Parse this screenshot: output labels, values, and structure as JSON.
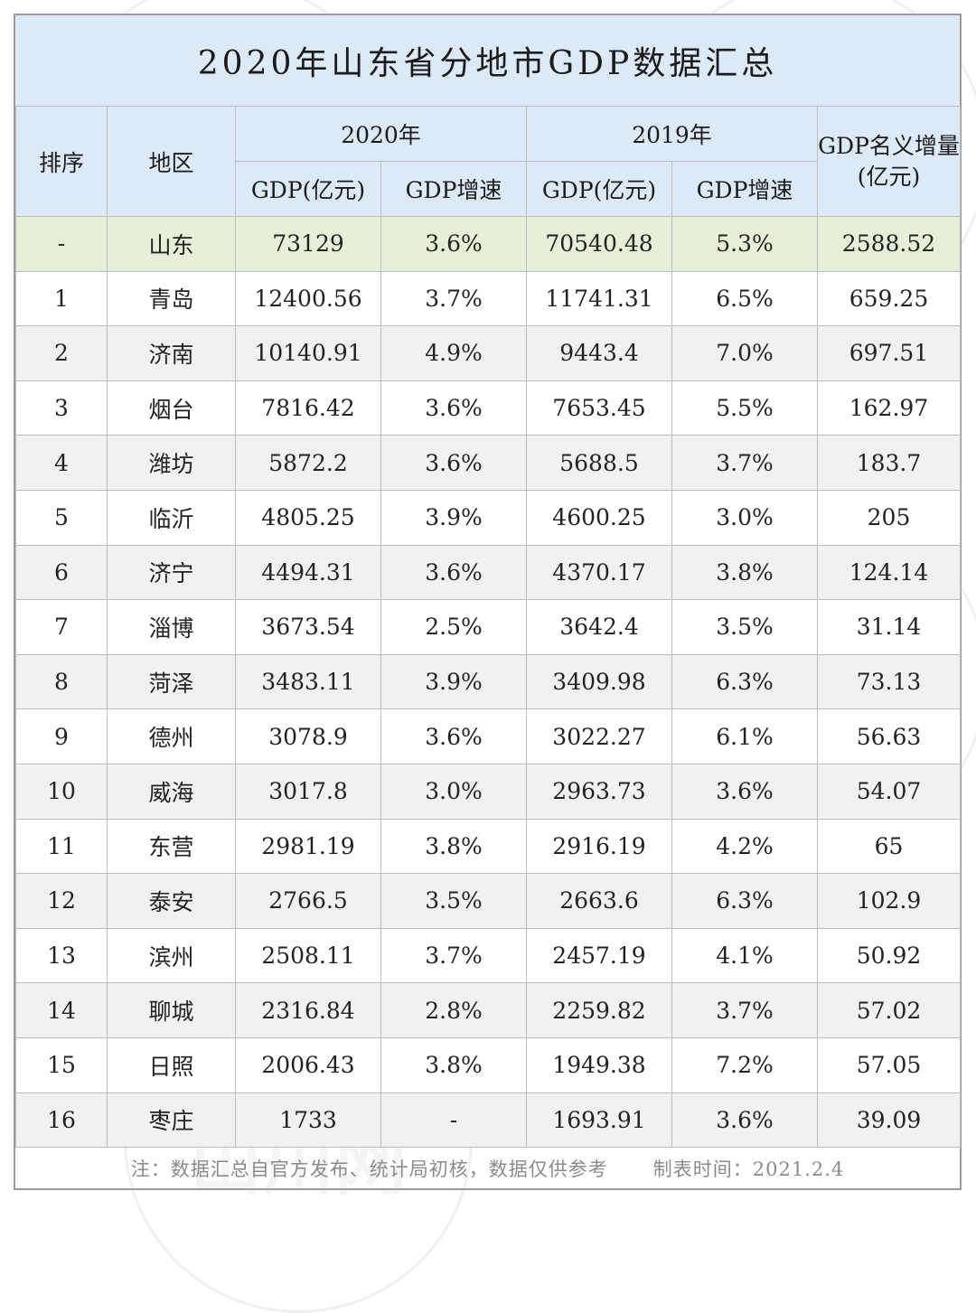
{
  "title": "2020年山东省分地市GDP数据汇总",
  "chart_data": {
    "type": "table",
    "title": "2020年山东省分地市GDP数据汇总",
    "header": {
      "rank": "排序",
      "region": "地区",
      "year2020": "2020年",
      "year2019": "2019年",
      "gdp": "GDP(亿元)",
      "rate": "GDP增速",
      "increase": "GDP名义增量(亿元)"
    },
    "rows": [
      {
        "rank": "-",
        "region": "山东",
        "gdp2020": "73129",
        "rate2020": "3.6%",
        "gdp2019": "70540.48",
        "rate2019": "5.3%",
        "increase": "2588.52"
      },
      {
        "rank": "1",
        "region": "青岛",
        "gdp2020": "12400.56",
        "rate2020": "3.7%",
        "gdp2019": "11741.31",
        "rate2019": "6.5%",
        "increase": "659.25"
      },
      {
        "rank": "2",
        "region": "济南",
        "gdp2020": "10140.91",
        "rate2020": "4.9%",
        "gdp2019": "9443.4",
        "rate2019": "7.0%",
        "increase": "697.51"
      },
      {
        "rank": "3",
        "region": "烟台",
        "gdp2020": "7816.42",
        "rate2020": "3.6%",
        "gdp2019": "7653.45",
        "rate2019": "5.5%",
        "increase": "162.97"
      },
      {
        "rank": "4",
        "region": "潍坊",
        "gdp2020": "5872.2",
        "rate2020": "3.6%",
        "gdp2019": "5688.5",
        "rate2019": "3.7%",
        "increase": "183.7"
      },
      {
        "rank": "5",
        "region": "临沂",
        "gdp2020": "4805.25",
        "rate2020": "3.9%",
        "gdp2019": "4600.25",
        "rate2019": "3.0%",
        "increase": "205"
      },
      {
        "rank": "6",
        "region": "济宁",
        "gdp2020": "4494.31",
        "rate2020": "3.6%",
        "gdp2019": "4370.17",
        "rate2019": "3.8%",
        "increase": "124.14"
      },
      {
        "rank": "7",
        "region": "淄博",
        "gdp2020": "3673.54",
        "rate2020": "2.5%",
        "gdp2019": "3642.4",
        "rate2019": "3.5%",
        "increase": "31.14"
      },
      {
        "rank": "8",
        "region": "菏泽",
        "gdp2020": "3483.11",
        "rate2020": "3.9%",
        "gdp2019": "3409.98",
        "rate2019": "6.3%",
        "increase": "73.13"
      },
      {
        "rank": "9",
        "region": "德州",
        "gdp2020": "3078.9",
        "rate2020": "3.6%",
        "gdp2019": "3022.27",
        "rate2019": "6.1%",
        "increase": "56.63"
      },
      {
        "rank": "10",
        "region": "威海",
        "gdp2020": "3017.8",
        "rate2020": "3.0%",
        "gdp2019": "2963.73",
        "rate2019": "3.6%",
        "increase": "54.07"
      },
      {
        "rank": "11",
        "region": "东营",
        "gdp2020": "2981.19",
        "rate2020": "3.8%",
        "gdp2019": "2916.19",
        "rate2019": "4.2%",
        "increase": "65"
      },
      {
        "rank": "12",
        "region": "泰安",
        "gdp2020": "2766.5",
        "rate2020": "3.5%",
        "gdp2019": "2663.6",
        "rate2019": "6.3%",
        "increase": "102.9"
      },
      {
        "rank": "13",
        "region": "滨州",
        "gdp2020": "2508.11",
        "rate2020": "3.7%",
        "gdp2019": "2457.19",
        "rate2019": "4.1%",
        "increase": "50.92"
      },
      {
        "rank": "14",
        "region": "聊城",
        "gdp2020": "2316.84",
        "rate2020": "2.8%",
        "gdp2019": "2259.82",
        "rate2019": "3.7%",
        "increase": "57.02"
      },
      {
        "rank": "15",
        "region": "日照",
        "gdp2020": "2006.43",
        "rate2020": "3.8%",
        "gdp2019": "1949.38",
        "rate2019": "7.2%",
        "increase": "57.05"
      },
      {
        "rank": "16",
        "region": "枣庄",
        "gdp2020": "1733",
        "rate2020": "-",
        "gdp2019": "1693.91",
        "rate2019": "3.6%",
        "increase": "39.09"
      }
    ]
  },
  "footnote": {
    "note": "注：数据汇总自官方发布、统计局初核，数据仅供参考",
    "made_time": "制表时间：2021.2.4"
  },
  "watermark": {
    "text": "山川网"
  },
  "colors": {
    "header_bg": "#dce9f7",
    "province_row_bg": "#e6f0d9",
    "alt_row_bg": "#f1f1f1",
    "border": "#bdbdbd"
  }
}
